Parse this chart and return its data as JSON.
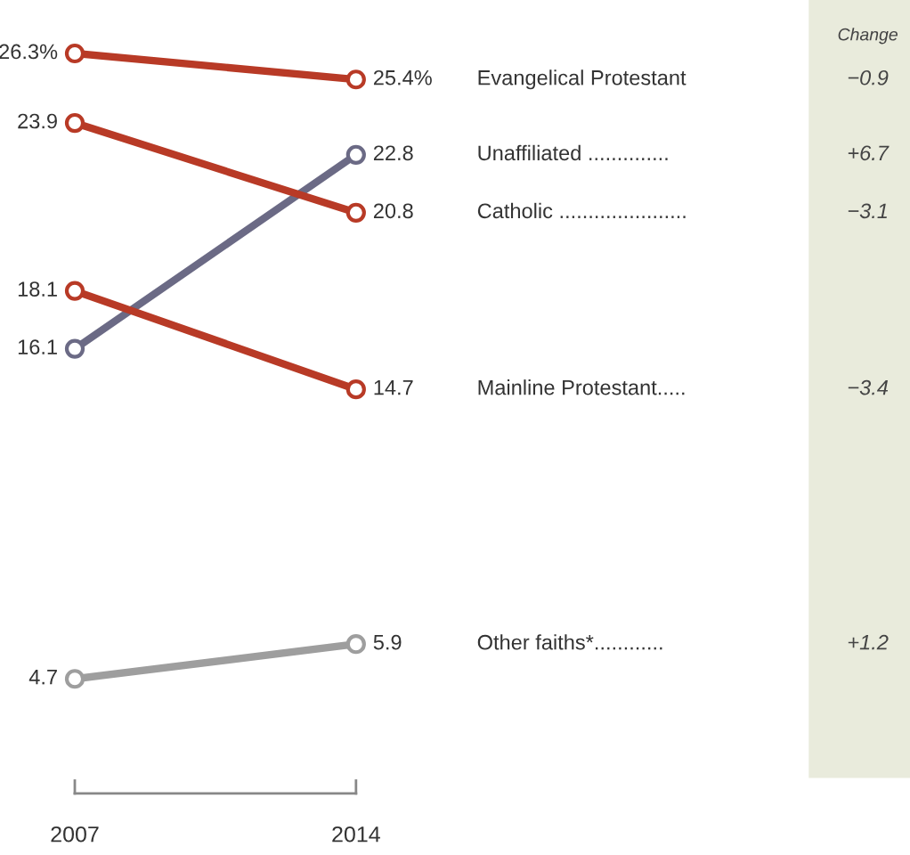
{
  "chart_data": {
    "type": "line",
    "categories": [
      "2007",
      "2014"
    ],
    "marker": "circle",
    "legend": false,
    "series": [
      {
        "name": "Evangelical Protestant",
        "color": "#b83a26",
        "values": [
          26.3,
          25.4
        ],
        "value_labels": [
          "26.3%",
          "25.4%"
        ]
      },
      {
        "name": "Unaffiliated ..............",
        "color": "#6b6a85",
        "values": [
          16.1,
          22.8
        ],
        "value_labels": [
          "16.1",
          "22.8"
        ]
      },
      {
        "name": "Catholic ......................",
        "color": "#b83a26",
        "values": [
          23.9,
          20.8
        ],
        "value_labels": [
          "23.9",
          "20.8"
        ]
      },
      {
        "name": "Mainline Protestant.....",
        "color": "#b83a26",
        "values": [
          18.1,
          14.7
        ],
        "value_labels": [
          "18.1",
          "14.7"
        ]
      },
      {
        "name": "Other faiths*............",
        "color": "#9e9e9e",
        "values": [
          4.7,
          5.9
        ],
        "value_labels": [
          "4.7",
          "5.9"
        ]
      }
    ],
    "annotations": [
      "Change",
      "−0.9",
      "+6.7",
      "−3.1",
      "−3.4",
      "+1.2"
    ]
  }
}
